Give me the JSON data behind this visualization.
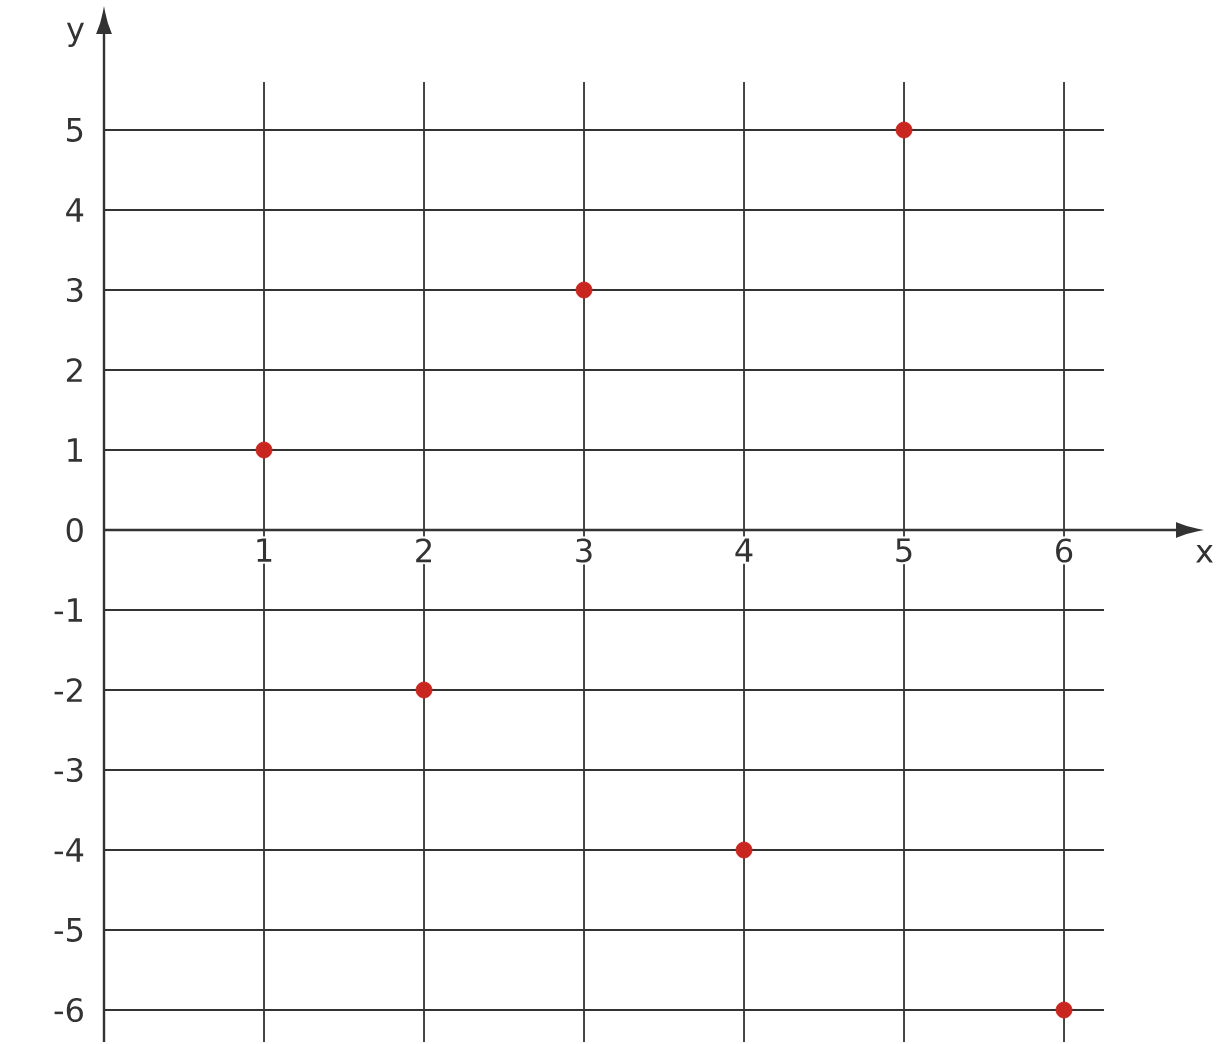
{
  "chart_data": {
    "type": "scatter",
    "xlabel": "x",
    "ylabel": "y",
    "x": [
      1,
      2,
      3,
      4,
      5,
      6
    ],
    "values": [
      1,
      -2,
      3,
      -4,
      5,
      -6
    ],
    "color": "#c8261e",
    "xlim": [
      0,
      6.25
    ],
    "ylim": [
      -6.4,
      5.6
    ],
    "xticks": [
      1,
      2,
      3,
      4,
      5,
      6
    ],
    "yticks": [
      -6,
      -5,
      -4,
      -3,
      -2,
      -1,
      0,
      1,
      2,
      3,
      4,
      5
    ],
    "grid": true
  }
}
